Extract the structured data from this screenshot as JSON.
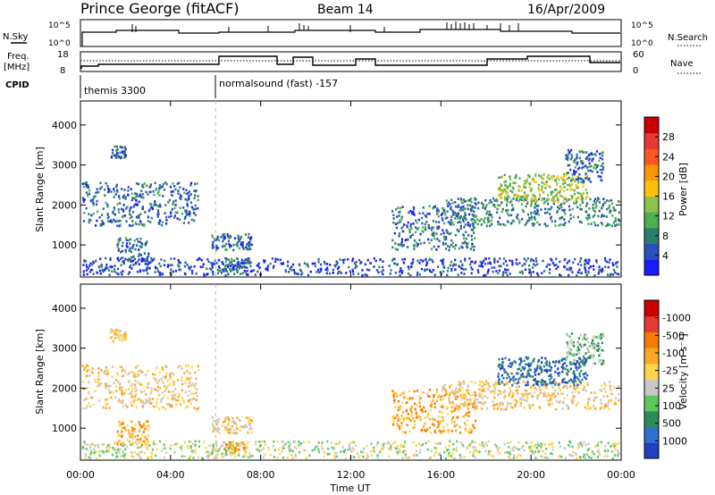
{
  "header": {
    "station": "Prince George (fitACF)",
    "beam": "Beam 14",
    "date": "16/Apr/2009"
  },
  "top_panels": {
    "nsky_label": "N.Sky",
    "nsky_ticks": [
      "10^5",
      "10^0"
    ],
    "nsearch_label": "N.Search",
    "nsearch_ticks": [
      "10^5",
      "10^0"
    ],
    "freq_label": "Freq.",
    "freq_unit": "[MHz]",
    "freq_ticks": [
      "18",
      "8"
    ],
    "nave_label": "Nave",
    "nave_ticks": [
      "60",
      "0"
    ],
    "cpid_label": "CPID",
    "cpid_segments": [
      {
        "label": "themis 3300",
        "start": "00:00",
        "end": "06:00"
      },
      {
        "label": "normalsound (fast) -157",
        "start": "06:00",
        "end": "24:00"
      }
    ]
  },
  "chart_data": [
    {
      "type": "heatmap",
      "ylabel": "Slant Range [km]",
      "ylim": [
        200,
        4600
      ],
      "yticks": [
        "1000",
        "2000",
        "3000",
        "4000"
      ],
      "xlim": [
        "00:00",
        "24:00"
      ],
      "colorbar": {
        "label": "Power [dB]",
        "ticks": [
          "4",
          "8",
          "12",
          "16",
          "20",
          "24",
          "28"
        ],
        "colors": [
          "#1a1aff",
          "#2a4fc0",
          "#2e7d6a",
          "#4caf50",
          "#8bc34a",
          "#ffc107",
          "#ff9800",
          "#ff5722",
          "#e53935",
          "#cc0000"
        ]
      },
      "grid": false
    },
    {
      "type": "heatmap",
      "ylabel": "Slant Range [km]",
      "ylim": [
        200,
        4600
      ],
      "yticks": [
        "1000",
        "2000",
        "3000",
        "4000"
      ],
      "xlim": [
        "00:00",
        "24:00"
      ],
      "colorbar": {
        "label": "Velocity [m s⁻¹]",
        "ticks": [
          "1000",
          "500",
          "100",
          "25",
          "-25",
          "-100",
          "-500",
          "-1000"
        ],
        "colors": [
          "#1f3fbf",
          "#2f6fd0",
          "#2e8b57",
          "#5cc95c",
          "#c8c8c8",
          "#ffd54f",
          "#ffa726",
          "#f57c00",
          "#e53935",
          "#cc0000"
        ]
      },
      "grid": false
    }
  ],
  "xaxis": {
    "ticks": [
      "00:00",
      "04:00",
      "08:00",
      "12:00",
      "16:00",
      "20:00",
      "00:00"
    ],
    "label": "Time UT"
  }
}
